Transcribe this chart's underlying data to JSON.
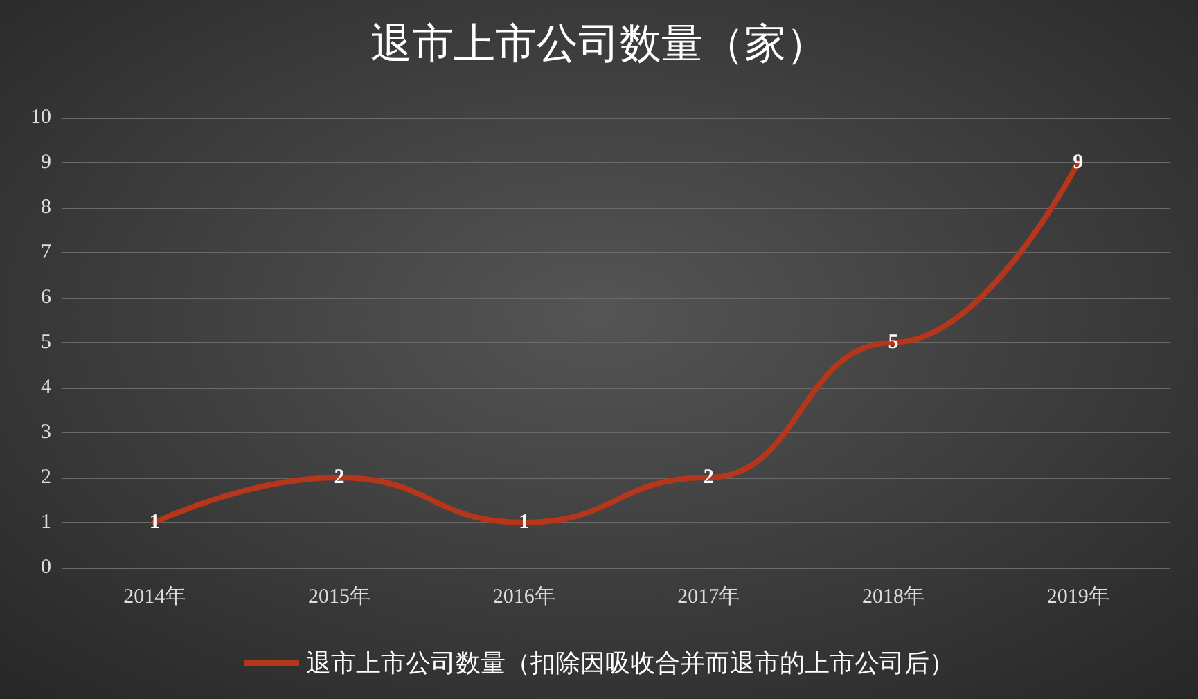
{
  "chart_data": {
    "type": "line",
    "title": "退市上市公司数量（家）",
    "categories": [
      "2014年",
      "2015年",
      "2016年",
      "2017年",
      "2018年",
      "2019年"
    ],
    "series": [
      {
        "name": "退市上市公司数量（扣除因吸收合并而退市的上市公司后）",
        "color": "#b5361a",
        "values": [
          1,
          2,
          1,
          2,
          5,
          9
        ]
      }
    ],
    "ylim": [
      0,
      10
    ],
    "yticks": [
      0,
      1,
      2,
      3,
      4,
      5,
      6,
      7,
      8,
      9,
      10
    ],
    "grid": "y",
    "legend": "bottom",
    "marker": "none",
    "data_labels": true
  }
}
